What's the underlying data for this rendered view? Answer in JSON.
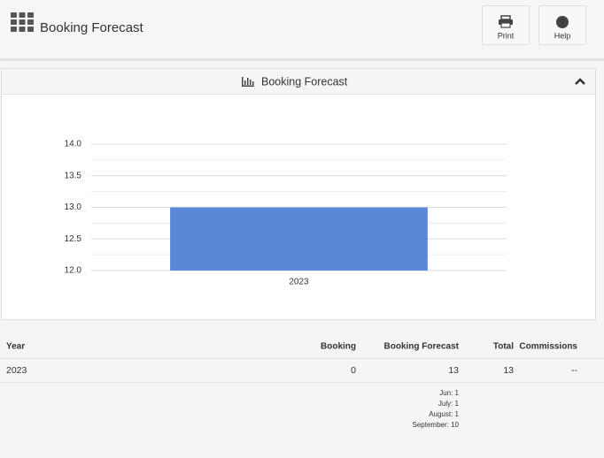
{
  "header": {
    "title": "Booking Forecast",
    "buttons": [
      "Print",
      "Help"
    ]
  },
  "panel": {
    "title": "Booking Forecast"
  },
  "chart_data": {
    "type": "bar",
    "categories": [
      "2023"
    ],
    "values": [
      13
    ],
    "color": "#5b87d8",
    "ylim": [
      12,
      14
    ],
    "yticks": [
      {
        "value": 12,
        "label": "12.0"
      },
      {
        "value": 12.5,
        "label": "12.5"
      },
      {
        "value": 13,
        "label": "13.0"
      },
      {
        "value": 13.5,
        "label": "13.5"
      },
      {
        "value": 14,
        "label": "14.0"
      }
    ],
    "minor_yticks": [
      12.25,
      12.75,
      13.25,
      13.75
    ],
    "grid": true
  },
  "table": {
    "columns": [
      "Year",
      "Booking",
      "Booking Forecast",
      "Total",
      "Commissions"
    ],
    "rows": [
      [
        "2023",
        0,
        13,
        13,
        "--"
      ]
    ],
    "breakdown": [
      "Jun: 1",
      "July: 1",
      "August: 1",
      "September: 10"
    ]
  }
}
